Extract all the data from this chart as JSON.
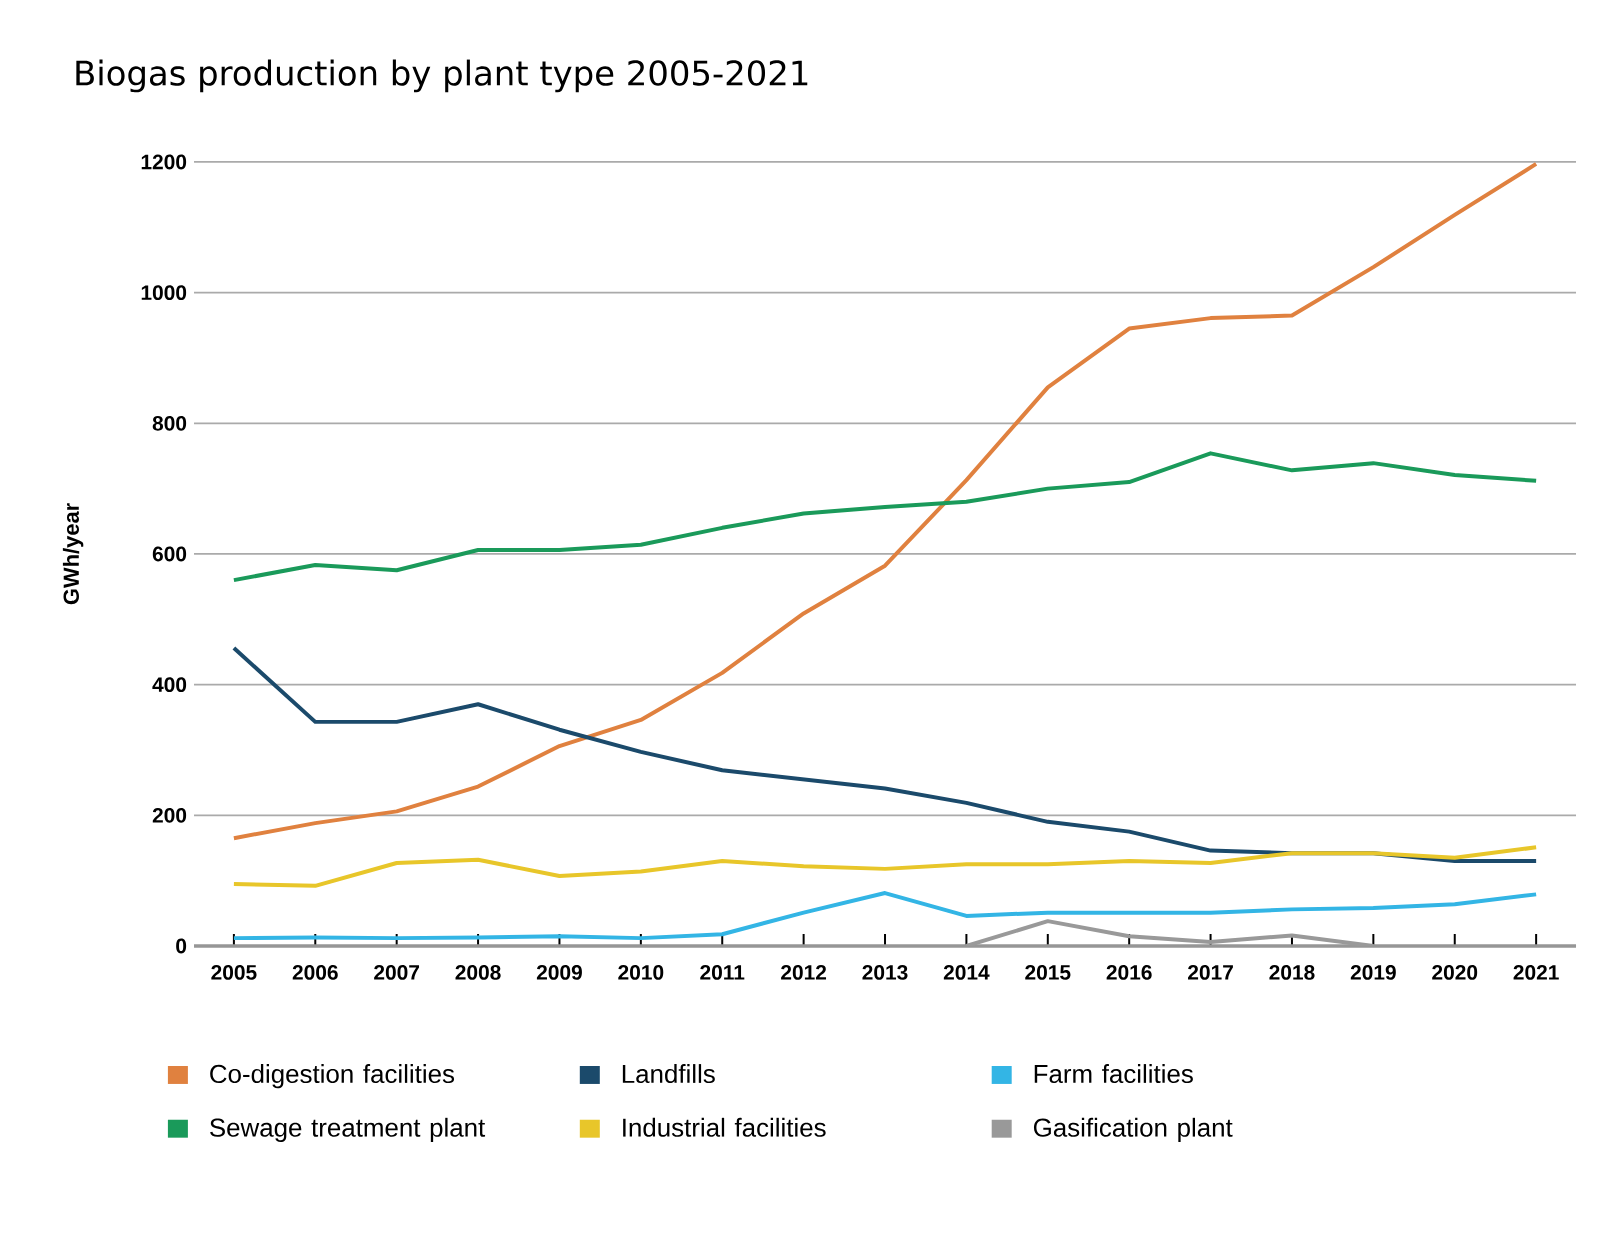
{
  "chart_data": {
    "type": "line",
    "title": "Biogas production by plant type 2005-2021",
    "ylabel": "GWh/year",
    "categories": [
      "2005",
      "2006",
      "2007",
      "2008",
      "2009",
      "2010",
      "2011",
      "2012",
      "2013",
      "2014",
      "2015",
      "2016",
      "2017",
      "2018",
      "2019",
      "2020",
      "2021"
    ],
    "ylim": [
      0,
      1200
    ],
    "yticks": [
      0,
      200,
      400,
      600,
      800,
      1000,
      1200
    ],
    "grid": "y",
    "legend": "bottom",
    "series": [
      {
        "name": "Co-digestion facilities",
        "color": "#e0813f",
        "values": [
          165,
          188,
          206,
          244,
          306,
          346,
          418,
          509,
          582,
          713,
          855,
          945,
          961,
          965,
          1039,
          1119,
          1197
        ]
      },
      {
        "name": "Landfills",
        "color": "#1b4a6b",
        "values": [
          456,
          343,
          343,
          370,
          331,
          297,
          269,
          255,
          241,
          219,
          190,
          175,
          146,
          142,
          142,
          130,
          130
        ]
      },
      {
        "name": "Farm facilities",
        "color": "#33b5e5",
        "values": [
          12,
          13,
          12,
          13,
          15,
          12,
          18,
          51,
          81,
          46,
          51,
          51,
          51,
          56,
          58,
          64,
          79
        ]
      },
      {
        "name": "Sewage treatment plant",
        "color": "#1a9a5a",
        "values": [
          560,
          583,
          575,
          606,
          606,
          614,
          640,
          662,
          672,
          680,
          700,
          710,
          754,
          728,
          739,
          721,
          712
        ]
      },
      {
        "name": "Industrial facilities",
        "color": "#e8c62a",
        "values": [
          95,
          92,
          127,
          132,
          107,
          114,
          130,
          122,
          118,
          125,
          125,
          130,
          127,
          142,
          142,
          135,
          151
        ]
      },
      {
        "name": "Gasification plant",
        "color": "#999999",
        "values": [
          null,
          null,
          null,
          null,
          null,
          null,
          null,
          null,
          null,
          0,
          38,
          15,
          6,
          16,
          0,
          null,
          null
        ]
      }
    ]
  }
}
